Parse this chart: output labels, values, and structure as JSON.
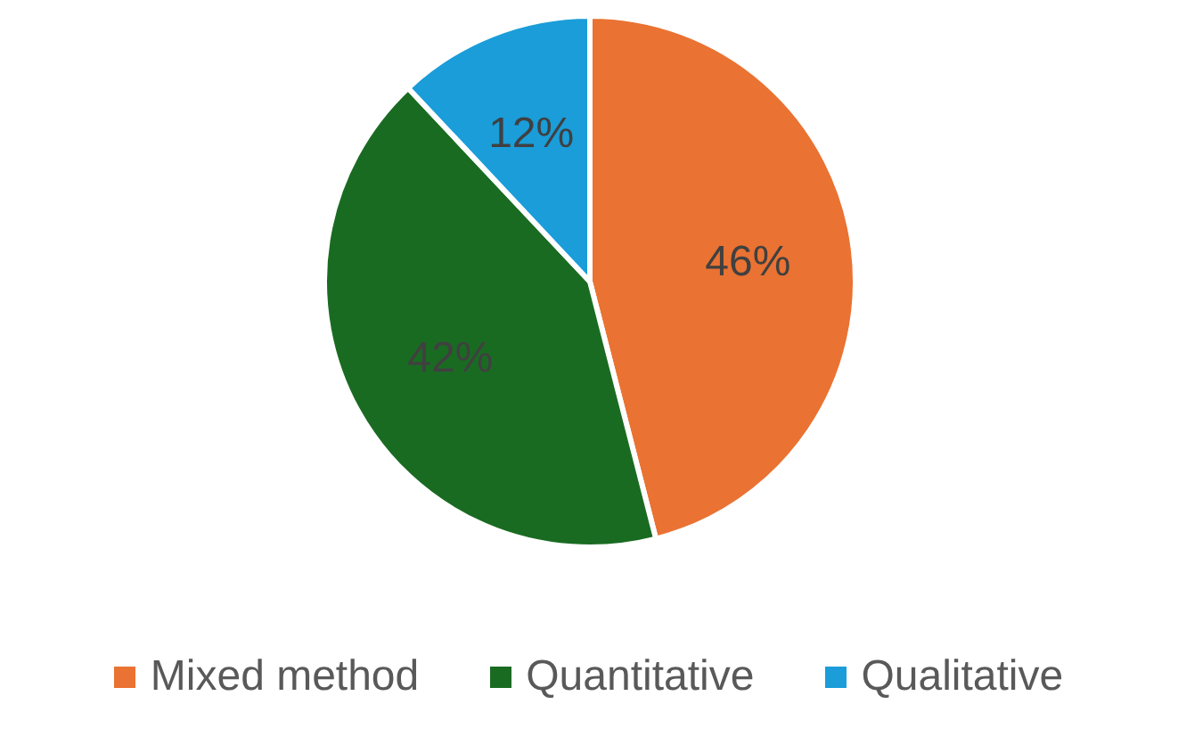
{
  "chart_data": {
    "type": "pie",
    "categories": [
      "Mixed method",
      "Quantitative",
      "Qualitative"
    ],
    "values": [
      46,
      42,
      12
    ],
    "colors": [
      "#ea7232",
      "#1a6b22",
      "#1a9dd9"
    ],
    "value_labels": [
      "46%",
      "42%",
      "12%"
    ],
    "legend": "bottom"
  }
}
